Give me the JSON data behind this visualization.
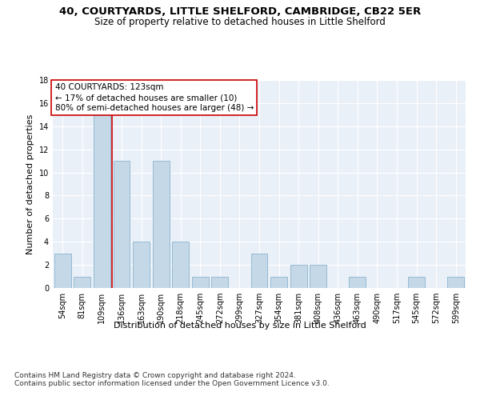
{
  "title": "40, COURTYARDS, LITTLE SHELFORD, CAMBRIDGE, CB22 5ER",
  "subtitle": "Size of property relative to detached houses in Little Shelford",
  "xlabel": "Distribution of detached houses by size in Little Shelford",
  "ylabel": "Number of detached properties",
  "categories": [
    "54sqm",
    "81sqm",
    "109sqm",
    "136sqm",
    "163sqm",
    "190sqm",
    "218sqm",
    "245sqm",
    "272sqm",
    "299sqm",
    "327sqm",
    "354sqm",
    "381sqm",
    "408sqm",
    "436sqm",
    "463sqm",
    "490sqm",
    "517sqm",
    "545sqm",
    "572sqm",
    "599sqm"
  ],
  "values": [
    3,
    1,
    15,
    11,
    4,
    11,
    4,
    1,
    1,
    0,
    3,
    1,
    2,
    2,
    0,
    1,
    0,
    0,
    1,
    0,
    1
  ],
  "bar_color": "#c5d8e8",
  "bar_edge_color": "#7baac7",
  "vline_x_index": 2,
  "vline_color": "#cc0000",
  "annotation_text": "40 COURTYARDS: 123sqm\n← 17% of detached houses are smaller (10)\n80% of semi-detached houses are larger (48) →",
  "annotation_box_color": "#ffffff",
  "annotation_box_edge": "#cc0000",
  "ylim": [
    0,
    18
  ],
  "yticks": [
    0,
    2,
    4,
    6,
    8,
    10,
    12,
    14,
    16,
    18
  ],
  "background_color": "#eaf0f7",
  "grid_color": "#ffffff",
  "footer": "Contains HM Land Registry data © Crown copyright and database right 2024.\nContains public sector information licensed under the Open Government Licence v3.0.",
  "title_fontsize": 9.5,
  "subtitle_fontsize": 8.5,
  "axis_label_fontsize": 8,
  "tick_fontsize": 7,
  "annotation_fontsize": 7.5,
  "footer_fontsize": 6.5
}
